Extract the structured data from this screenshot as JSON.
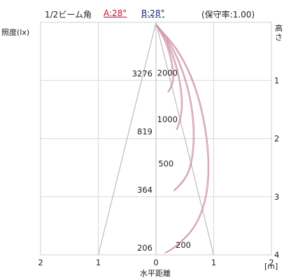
{
  "header": {
    "beam_angle_label": "1/2ビーム角",
    "a_label": "A:28°",
    "b_label": "B:28°",
    "maintenance": "(保守率:1.00)"
  },
  "chart_data": {
    "type": "line",
    "ylabel": "照度(lx)",
    "right_axis_label": "高さ",
    "xlabel": "水平距離",
    "x_unit": "[m]",
    "xlim": [
      -2,
      2
    ],
    "height_range": [
      0,
      4
    ],
    "x_ticks": [
      "2",
      "1",
      "0",
      "1",
      "2"
    ],
    "height_ticks": [
      "1",
      "2",
      "3",
      "4"
    ],
    "grid": true,
    "center_illuminance": [
      {
        "height": 1,
        "lux": "3276"
      },
      {
        "height": 2,
        "lux": "819"
      },
      {
        "height": 3,
        "lux": "364"
      },
      {
        "height": 4,
        "lux": "206"
      }
    ],
    "beam_spread_half_width": {
      "height": [
        0,
        4
      ],
      "distance": [
        0,
        1.0
      ]
    },
    "isolux_curves": [
      {
        "lux": "2000",
        "points": [
          [
            0.0,
            0.05
          ],
          [
            0.15,
            0.3
          ],
          [
            0.25,
            0.6
          ],
          [
            0.3,
            0.95
          ],
          [
            0.26,
            1.1
          ],
          [
            0.2,
            1.2
          ]
        ]
      },
      {
        "lux": "1000",
        "points": [
          [
            0.0,
            0.05
          ],
          [
            0.2,
            0.35
          ],
          [
            0.38,
            0.85
          ],
          [
            0.45,
            1.35
          ],
          [
            0.42,
            1.65
          ],
          [
            0.35,
            1.85
          ]
        ]
      },
      {
        "lux": "500",
        "points": [
          [
            0.0,
            0.05
          ],
          [
            0.3,
            0.45
          ],
          [
            0.55,
            1.1
          ],
          [
            0.66,
            1.8
          ],
          [
            0.62,
            2.4
          ],
          [
            0.5,
            2.7
          ],
          [
            0.3,
            2.9
          ]
        ]
      },
      {
        "lux": "200",
        "points": [
          [
            0.0,
            0.05
          ],
          [
            0.4,
            0.5
          ],
          [
            0.72,
            1.2
          ],
          [
            0.9,
            2.1
          ],
          [
            0.9,
            2.9
          ],
          [
            0.7,
            3.5
          ],
          [
            0.35,
            3.85
          ],
          [
            0.15,
            3.97
          ]
        ]
      }
    ]
  }
}
